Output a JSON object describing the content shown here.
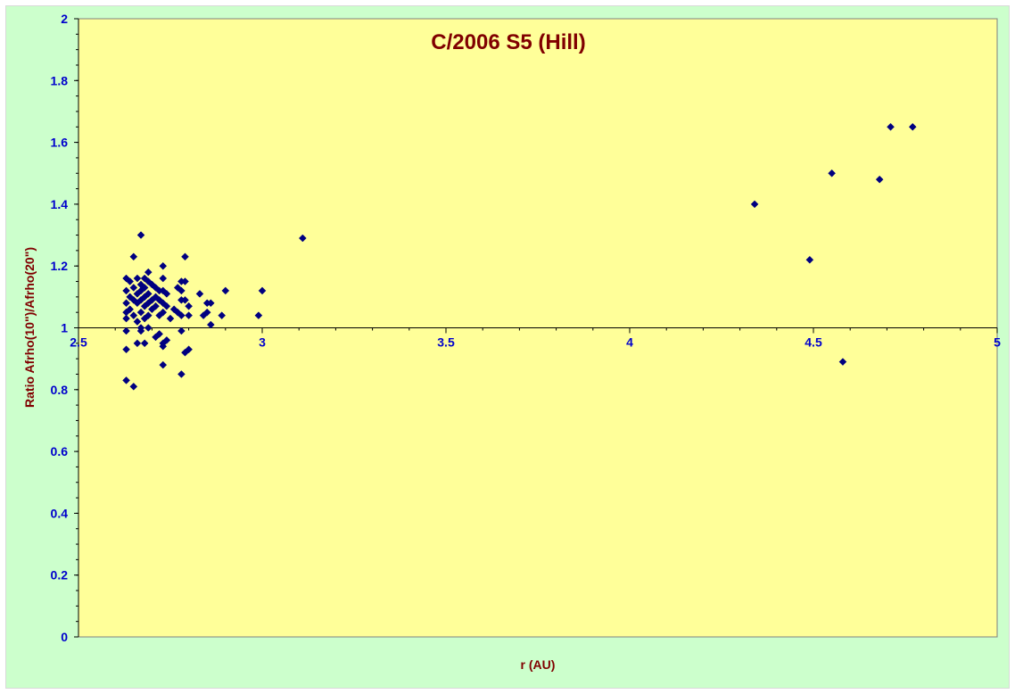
{
  "chart_data": {
    "type": "scatter",
    "title": "C/2006 S5 (Hill)",
    "xlabel": "r (AU)",
    "ylabel": "Ratio Afrho(10\")/Afrho(20\")",
    "xlim": [
      2.5,
      5
    ],
    "ylim": [
      0,
      2
    ],
    "x_ticks": [
      "2.5",
      "3",
      "3.5",
      "4",
      "4.5",
      "5"
    ],
    "y_ticks": [
      "0",
      "0.2",
      "0.4",
      "0.6",
      "0.8",
      "1",
      "1.2",
      "1.4",
      "1.6",
      "1.8",
      "2"
    ],
    "x_axis_crosses_y_at": 1,
    "grid": false,
    "legend": "none",
    "colors": {
      "plot_background": "#ffff99",
      "chart_background": "#ccffcc",
      "marker": "#000080",
      "title": "#800000",
      "tick_labels": "#0000cc"
    },
    "marker": "diamond",
    "points": [
      [
        2.63,
        1.16
      ],
      [
        2.63,
        1.12
      ],
      [
        2.63,
        1.08
      ],
      [
        2.63,
        1.05
      ],
      [
        2.63,
        1.03
      ],
      [
        2.63,
        0.99
      ],
      [
        2.63,
        0.93
      ],
      [
        2.63,
        0.83
      ],
      [
        2.64,
        1.15
      ],
      [
        2.64,
        1.1
      ],
      [
        2.64,
        1.06
      ],
      [
        2.65,
        1.23
      ],
      [
        2.65,
        1.13
      ],
      [
        2.65,
        1.09
      ],
      [
        2.65,
        1.04
      ],
      [
        2.65,
        0.81
      ],
      [
        2.66,
        1.16
      ],
      [
        2.66,
        1.11
      ],
      [
        2.66,
        1.08
      ],
      [
        2.66,
        1.02
      ],
      [
        2.66,
        0.95
      ],
      [
        2.67,
        1.3
      ],
      [
        2.67,
        1.14
      ],
      [
        2.67,
        1.12
      ],
      [
        2.67,
        1.09
      ],
      [
        2.67,
        1.05
      ],
      [
        2.67,
        1.0
      ],
      [
        2.67,
        0.99
      ],
      [
        2.68,
        1.16
      ],
      [
        2.68,
        1.13
      ],
      [
        2.68,
        1.1
      ],
      [
        2.68,
        1.07
      ],
      [
        2.68,
        1.03
      ],
      [
        2.68,
        0.95
      ],
      [
        2.69,
        1.18
      ],
      [
        2.69,
        1.15
      ],
      [
        2.69,
        1.11
      ],
      [
        2.69,
        1.08
      ],
      [
        2.69,
        1.04
      ],
      [
        2.69,
        1.0
      ],
      [
        2.7,
        1.14
      ],
      [
        2.7,
        1.09
      ],
      [
        2.7,
        1.06
      ],
      [
        2.71,
        1.13
      ],
      [
        2.71,
        1.1
      ],
      [
        2.71,
        1.07
      ],
      [
        2.71,
        0.97
      ],
      [
        2.72,
        1.12
      ],
      [
        2.72,
        1.09
      ],
      [
        2.72,
        1.04
      ],
      [
        2.72,
        0.98
      ],
      [
        2.73,
        1.2
      ],
      [
        2.73,
        1.16
      ],
      [
        2.73,
        1.12
      ],
      [
        2.73,
        1.08
      ],
      [
        2.73,
        1.05
      ],
      [
        2.73,
        0.95
      ],
      [
        2.73,
        0.94
      ],
      [
        2.73,
        0.88
      ],
      [
        2.74,
        1.11
      ],
      [
        2.74,
        1.07
      ],
      [
        2.74,
        0.96
      ],
      [
        2.75,
        1.03
      ],
      [
        2.76,
        1.06
      ],
      [
        2.77,
        1.13
      ],
      [
        2.77,
        1.05
      ],
      [
        2.78,
        1.15
      ],
      [
        2.78,
        1.12
      ],
      [
        2.78,
        1.09
      ],
      [
        2.78,
        1.04
      ],
      [
        2.78,
        0.99
      ],
      [
        2.78,
        0.85
      ],
      [
        2.79,
        1.23
      ],
      [
        2.79,
        1.15
      ],
      [
        2.79,
        1.09
      ],
      [
        2.79,
        0.92
      ],
      [
        2.8,
        1.07
      ],
      [
        2.8,
        1.04
      ],
      [
        2.8,
        0.93
      ],
      [
        2.83,
        1.11
      ],
      [
        2.84,
        1.04
      ],
      [
        2.85,
        1.08
      ],
      [
        2.85,
        1.05
      ],
      [
        2.86,
        1.08
      ],
      [
        2.86,
        1.01
      ],
      [
        2.89,
        1.04
      ],
      [
        2.9,
        1.12
      ],
      [
        2.99,
        1.04
      ],
      [
        3.0,
        1.12
      ],
      [
        3.11,
        1.29
      ],
      [
        4.34,
        1.4
      ],
      [
        4.49,
        1.22
      ],
      [
        4.55,
        1.5
      ],
      [
        4.58,
        0.89
      ],
      [
        4.68,
        1.48
      ],
      [
        4.71,
        1.65
      ],
      [
        4.77,
        1.65
      ]
    ]
  }
}
